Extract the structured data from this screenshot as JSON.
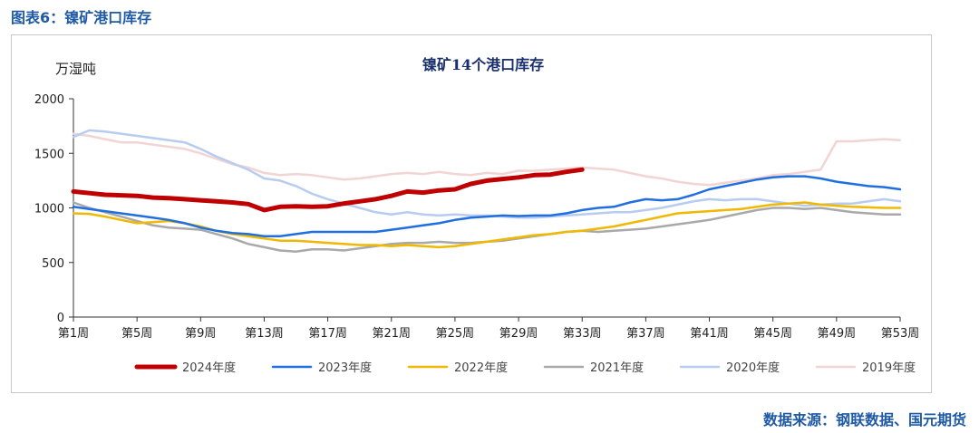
{
  "figure_label": "图表6：镍矿港口库存",
  "source": "数据来源：钢联数据、国元期货",
  "chart_data": {
    "type": "line",
    "title": "镍矿14个港口库存",
    "ylabel": "万湿吨",
    "xlabel": "",
    "ylim": [
      0,
      2000
    ],
    "yticks": [
      0,
      500,
      1000,
      1500,
      2000
    ],
    "xlim": [
      1,
      53
    ],
    "xtick_values": [
      1,
      5,
      9,
      13,
      17,
      21,
      25,
      29,
      33,
      37,
      41,
      45,
      49,
      53
    ],
    "xtick_labels": [
      "第1周",
      "第5周",
      "第9周",
      "第13周",
      "第17周",
      "第21周",
      "第25周",
      "第29周",
      "第33周",
      "第37周",
      "第41周",
      "第45周",
      "第49周",
      "第53周"
    ],
    "grid": false,
    "legend": "bottom",
    "series": [
      {
        "name": "2024年度",
        "color": "#c00000",
        "width": 5,
        "points": [
          [
            1,
            1150
          ],
          [
            2,
            1135
          ],
          [
            3,
            1120
          ],
          [
            4,
            1115
          ],
          [
            5,
            1110
          ],
          [
            6,
            1095
          ],
          [
            7,
            1090
          ],
          [
            8,
            1080
          ],
          [
            9,
            1070
          ],
          [
            10,
            1060
          ],
          [
            11,
            1050
          ],
          [
            12,
            1035
          ],
          [
            13,
            980
          ],
          [
            14,
            1010
          ],
          [
            15,
            1015
          ],
          [
            16,
            1010
          ],
          [
            17,
            1015
          ],
          [
            18,
            1040
          ],
          [
            19,
            1060
          ],
          [
            20,
            1080
          ],
          [
            21,
            1110
          ],
          [
            22,
            1150
          ],
          [
            23,
            1140
          ],
          [
            24,
            1160
          ],
          [
            25,
            1170
          ],
          [
            26,
            1220
          ],
          [
            27,
            1250
          ],
          [
            28,
            1265
          ],
          [
            29,
            1280
          ],
          [
            30,
            1300
          ],
          [
            31,
            1305
          ],
          [
            32,
            1330
          ],
          [
            33,
            1350
          ]
        ]
      },
      {
        "name": "2023年度",
        "color": "#1f6fe0",
        "width": 2.5,
        "points": [
          [
            1,
            1010
          ],
          [
            2,
            990
          ],
          [
            3,
            970
          ],
          [
            4,
            950
          ],
          [
            5,
            930
          ],
          [
            6,
            910
          ],
          [
            7,
            890
          ],
          [
            8,
            860
          ],
          [
            9,
            820
          ],
          [
            10,
            790
          ],
          [
            11,
            770
          ],
          [
            12,
            760
          ],
          [
            13,
            740
          ],
          [
            14,
            740
          ],
          [
            15,
            760
          ],
          [
            16,
            780
          ],
          [
            17,
            780
          ],
          [
            18,
            780
          ],
          [
            19,
            780
          ],
          [
            20,
            780
          ],
          [
            21,
            800
          ],
          [
            22,
            820
          ],
          [
            23,
            840
          ],
          [
            24,
            860
          ],
          [
            25,
            890
          ],
          [
            26,
            910
          ],
          [
            27,
            920
          ],
          [
            28,
            930
          ],
          [
            29,
            925
          ],
          [
            30,
            930
          ],
          [
            31,
            930
          ],
          [
            32,
            950
          ],
          [
            33,
            980
          ],
          [
            34,
            1000
          ],
          [
            35,
            1010
          ],
          [
            36,
            1050
          ],
          [
            37,
            1080
          ],
          [
            38,
            1070
          ],
          [
            39,
            1080
          ],
          [
            40,
            1120
          ],
          [
            41,
            1170
          ],
          [
            42,
            1200
          ],
          [
            43,
            1230
          ],
          [
            44,
            1260
          ],
          [
            45,
            1280
          ],
          [
            46,
            1290
          ],
          [
            47,
            1290
          ],
          [
            48,
            1270
          ],
          [
            49,
            1240
          ],
          [
            50,
            1220
          ],
          [
            51,
            1200
          ],
          [
            52,
            1190
          ],
          [
            53,
            1170
          ]
        ]
      },
      {
        "name": "2022年度",
        "color": "#f0b800",
        "width": 2.5,
        "points": [
          [
            1,
            950
          ],
          [
            2,
            945
          ],
          [
            3,
            920
          ],
          [
            4,
            890
          ],
          [
            5,
            860
          ],
          [
            6,
            870
          ],
          [
            7,
            880
          ],
          [
            8,
            860
          ],
          [
            9,
            830
          ],
          [
            10,
            790
          ],
          [
            11,
            760
          ],
          [
            12,
            740
          ],
          [
            13,
            720
          ],
          [
            14,
            700
          ],
          [
            15,
            700
          ],
          [
            16,
            690
          ],
          [
            17,
            680
          ],
          [
            18,
            670
          ],
          [
            19,
            660
          ],
          [
            20,
            660
          ],
          [
            21,
            650
          ],
          [
            22,
            660
          ],
          [
            23,
            650
          ],
          [
            24,
            640
          ],
          [
            25,
            650
          ],
          [
            26,
            670
          ],
          [
            27,
            690
          ],
          [
            28,
            710
          ],
          [
            29,
            730
          ],
          [
            30,
            750
          ],
          [
            31,
            760
          ],
          [
            32,
            780
          ],
          [
            33,
            790
          ],
          [
            34,
            810
          ],
          [
            35,
            830
          ],
          [
            36,
            860
          ],
          [
            37,
            890
          ],
          [
            38,
            920
          ],
          [
            39,
            950
          ],
          [
            40,
            960
          ],
          [
            41,
            970
          ],
          [
            42,
            980
          ],
          [
            43,
            990
          ],
          [
            44,
            1010
          ],
          [
            45,
            1030
          ],
          [
            46,
            1040
          ],
          [
            47,
            1050
          ],
          [
            48,
            1030
          ],
          [
            49,
            1020
          ],
          [
            50,
            1010
          ],
          [
            51,
            1005
          ],
          [
            52,
            1000
          ],
          [
            53,
            1000
          ]
        ]
      },
      {
        "name": "2021年度",
        "color": "#a9a9a9",
        "width": 2.5,
        "points": [
          [
            1,
            1050
          ],
          [
            2,
            1000
          ],
          [
            3,
            960
          ],
          [
            4,
            920
          ],
          [
            5,
            880
          ],
          [
            6,
            840
          ],
          [
            7,
            820
          ],
          [
            8,
            810
          ],
          [
            9,
            800
          ],
          [
            10,
            760
          ],
          [
            11,
            720
          ],
          [
            12,
            670
          ],
          [
            13,
            640
          ],
          [
            14,
            610
          ],
          [
            15,
            600
          ],
          [
            16,
            620
          ],
          [
            17,
            620
          ],
          [
            18,
            610
          ],
          [
            19,
            630
          ],
          [
            20,
            650
          ],
          [
            21,
            670
          ],
          [
            22,
            680
          ],
          [
            23,
            680
          ],
          [
            24,
            690
          ],
          [
            25,
            680
          ],
          [
            26,
            680
          ],
          [
            27,
            690
          ],
          [
            28,
            700
          ],
          [
            29,
            720
          ],
          [
            30,
            740
          ],
          [
            31,
            760
          ],
          [
            32,
            780
          ],
          [
            33,
            790
          ],
          [
            34,
            780
          ],
          [
            35,
            790
          ],
          [
            36,
            800
          ],
          [
            37,
            810
          ],
          [
            38,
            830
          ],
          [
            39,
            850
          ],
          [
            40,
            870
          ],
          [
            41,
            890
          ],
          [
            42,
            920
          ],
          [
            43,
            950
          ],
          [
            44,
            980
          ],
          [
            45,
            1000
          ],
          [
            46,
            1000
          ],
          [
            47,
            990
          ],
          [
            48,
            1000
          ],
          [
            49,
            980
          ],
          [
            50,
            960
          ],
          [
            51,
            950
          ],
          [
            52,
            940
          ],
          [
            53,
            940
          ]
        ]
      },
      {
        "name": "2020年度",
        "color": "#b7ccf0",
        "width": 2.5,
        "points": [
          [
            1,
            1650
          ],
          [
            2,
            1710
          ],
          [
            3,
            1700
          ],
          [
            4,
            1680
          ],
          [
            5,
            1660
          ],
          [
            6,
            1640
          ],
          [
            7,
            1620
          ],
          [
            8,
            1600
          ],
          [
            9,
            1540
          ],
          [
            10,
            1470
          ],
          [
            11,
            1410
          ],
          [
            12,
            1350
          ],
          [
            13,
            1270
          ],
          [
            14,
            1250
          ],
          [
            15,
            1200
          ],
          [
            16,
            1130
          ],
          [
            17,
            1080
          ],
          [
            18,
            1040
          ],
          [
            19,
            1000
          ],
          [
            20,
            960
          ],
          [
            21,
            940
          ],
          [
            22,
            960
          ],
          [
            23,
            940
          ],
          [
            24,
            930
          ],
          [
            25,
            940
          ],
          [
            26,
            930
          ],
          [
            27,
            930
          ],
          [
            28,
            920
          ],
          [
            29,
            910
          ],
          [
            30,
            910
          ],
          [
            31,
            920
          ],
          [
            32,
            930
          ],
          [
            33,
            940
          ],
          [
            34,
            950
          ],
          [
            35,
            960
          ],
          [
            36,
            960
          ],
          [
            37,
            980
          ],
          [
            38,
            1000
          ],
          [
            39,
            1030
          ],
          [
            40,
            1060
          ],
          [
            41,
            1080
          ],
          [
            42,
            1070
          ],
          [
            43,
            1080
          ],
          [
            44,
            1080
          ],
          [
            45,
            1060
          ],
          [
            46,
            1040
          ],
          [
            47,
            1020
          ],
          [
            48,
            1030
          ],
          [
            49,
            1040
          ],
          [
            50,
            1040
          ],
          [
            51,
            1060
          ],
          [
            52,
            1080
          ],
          [
            53,
            1060
          ]
        ]
      },
      {
        "name": "2019年度",
        "color": "#f2d4d4",
        "width": 2.5,
        "points": [
          [
            1,
            1680
          ],
          [
            2,
            1660
          ],
          [
            3,
            1630
          ],
          [
            4,
            1600
          ],
          [
            5,
            1600
          ],
          [
            6,
            1580
          ],
          [
            7,
            1560
          ],
          [
            8,
            1540
          ],
          [
            9,
            1500
          ],
          [
            10,
            1450
          ],
          [
            11,
            1400
          ],
          [
            12,
            1370
          ],
          [
            13,
            1320
          ],
          [
            14,
            1300
          ],
          [
            15,
            1310
          ],
          [
            16,
            1300
          ],
          [
            17,
            1280
          ],
          [
            18,
            1260
          ],
          [
            19,
            1270
          ],
          [
            20,
            1290
          ],
          [
            21,
            1310
          ],
          [
            22,
            1320
          ],
          [
            23,
            1310
          ],
          [
            24,
            1330
          ],
          [
            25,
            1310
          ],
          [
            26,
            1300
          ],
          [
            27,
            1320
          ],
          [
            28,
            1310
          ],
          [
            29,
            1340
          ],
          [
            30,
            1340
          ],
          [
            31,
            1350
          ],
          [
            32,
            1360
          ],
          [
            33,
            1370
          ],
          [
            34,
            1360
          ],
          [
            35,
            1350
          ],
          [
            36,
            1320
          ],
          [
            37,
            1290
          ],
          [
            38,
            1270
          ],
          [
            39,
            1240
          ],
          [
            40,
            1220
          ],
          [
            41,
            1210
          ],
          [
            42,
            1230
          ],
          [
            43,
            1250
          ],
          [
            44,
            1270
          ],
          [
            45,
            1300
          ],
          [
            46,
            1310
          ],
          [
            47,
            1330
          ],
          [
            48,
            1350
          ],
          [
            49,
            1610
          ],
          [
            50,
            1610
          ],
          [
            51,
            1620
          ],
          [
            52,
            1630
          ],
          [
            53,
            1620
          ]
        ]
      }
    ]
  }
}
